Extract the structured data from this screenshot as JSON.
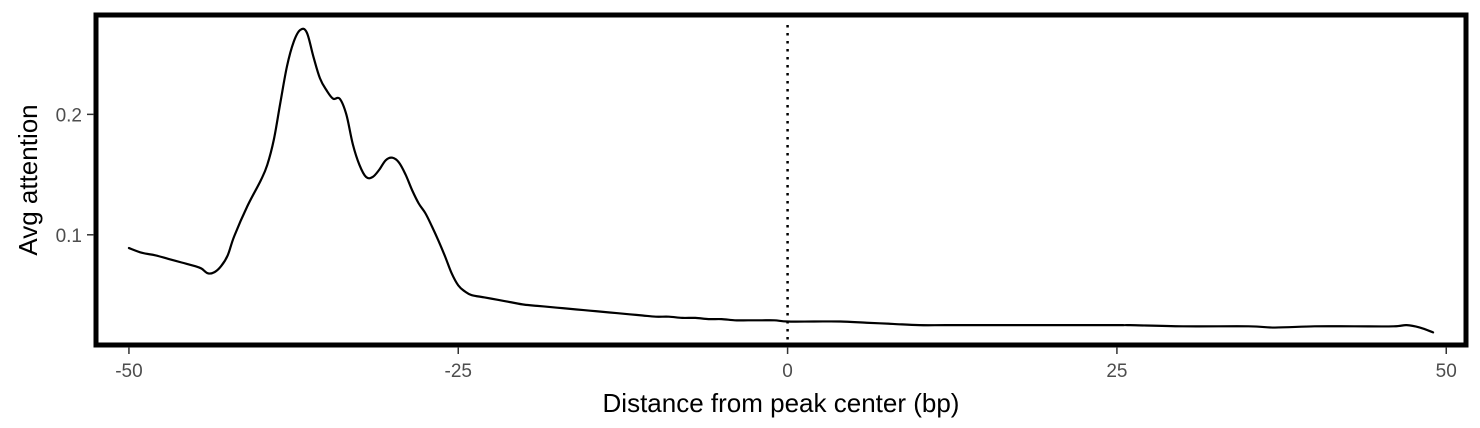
{
  "chart_data": {
    "type": "line",
    "title": "",
    "xlabel": "Distance from peak center (bp)",
    "ylabel": "Avg attention",
    "xlim": [
      -52.5,
      51.5
    ],
    "ylim": [
      0.0085,
      0.2825
    ],
    "x_ticks": [
      {
        "value": -50,
        "label": "-50"
      },
      {
        "value": -25,
        "label": "-25"
      },
      {
        "value": 0,
        "label": "0"
      },
      {
        "value": 25,
        "label": "25"
      },
      {
        "value": 50,
        "label": "50"
      }
    ],
    "y_ticks": [
      {
        "value": 0.1,
        "label": "0.1"
      },
      {
        "value": 0.2,
        "label": "0.2"
      }
    ],
    "reference_line": {
      "x": 0,
      "style": "dotted"
    },
    "grid": false,
    "legend": "none",
    "series": [
      {
        "color": "#000000",
        "x": [
          -50,
          -49,
          -48,
          -47,
          -46,
          -45,
          -44.5,
          -44,
          -43.5,
          -43,
          -42.5,
          -42,
          -41,
          -40,
          -39.5,
          -39,
          -38.5,
          -38,
          -37.5,
          -37,
          -36.5,
          -36,
          -35.5,
          -35,
          -34.5,
          -34,
          -33.5,
          -33,
          -32.5,
          -32,
          -31.5,
          -31,
          -30.5,
          -30,
          -29.5,
          -29,
          -28.5,
          -28,
          -27.5,
          -27,
          -26.5,
          -26,
          -25.5,
          -25,
          -24.5,
          -24,
          -23,
          -22,
          -21,
          -20,
          -19,
          -18,
          -17,
          -16,
          -15,
          -14,
          -13,
          -12,
          -11,
          -10,
          -9,
          -8,
          -7,
          -6,
          -5,
          -4,
          -3,
          -2,
          -1,
          0,
          2,
          4,
          6,
          8,
          10,
          12,
          15,
          20,
          25,
          26,
          30,
          35,
          37,
          40,
          43,
          46,
          47,
          48,
          49
        ],
        "y": [
          0.089,
          0.085,
          0.083,
          0.08,
          0.077,
          0.074,
          0.072,
          0.068,
          0.069,
          0.074,
          0.083,
          0.099,
          0.124,
          0.145,
          0.158,
          0.179,
          0.21,
          0.24,
          0.26,
          0.27,
          0.268,
          0.248,
          0.23,
          0.22,
          0.213,
          0.213,
          0.2,
          0.175,
          0.158,
          0.148,
          0.148,
          0.154,
          0.162,
          0.164,
          0.16,
          0.15,
          0.137,
          0.126,
          0.118,
          0.107,
          0.095,
          0.082,
          0.068,
          0.058,
          0.053,
          0.05,
          0.048,
          0.046,
          0.044,
          0.042,
          0.041,
          0.04,
          0.039,
          0.038,
          0.037,
          0.036,
          0.035,
          0.034,
          0.033,
          0.032,
          0.032,
          0.031,
          0.031,
          0.03,
          0.03,
          0.029,
          0.029,
          0.029,
          0.029,
          0.028,
          0.028,
          0.028,
          0.027,
          0.026,
          0.025,
          0.025,
          0.025,
          0.025,
          0.025,
          0.025,
          0.024,
          0.024,
          0.023,
          0.024,
          0.024,
          0.024,
          0.025,
          0.023,
          0.019
        ]
      }
    ]
  }
}
